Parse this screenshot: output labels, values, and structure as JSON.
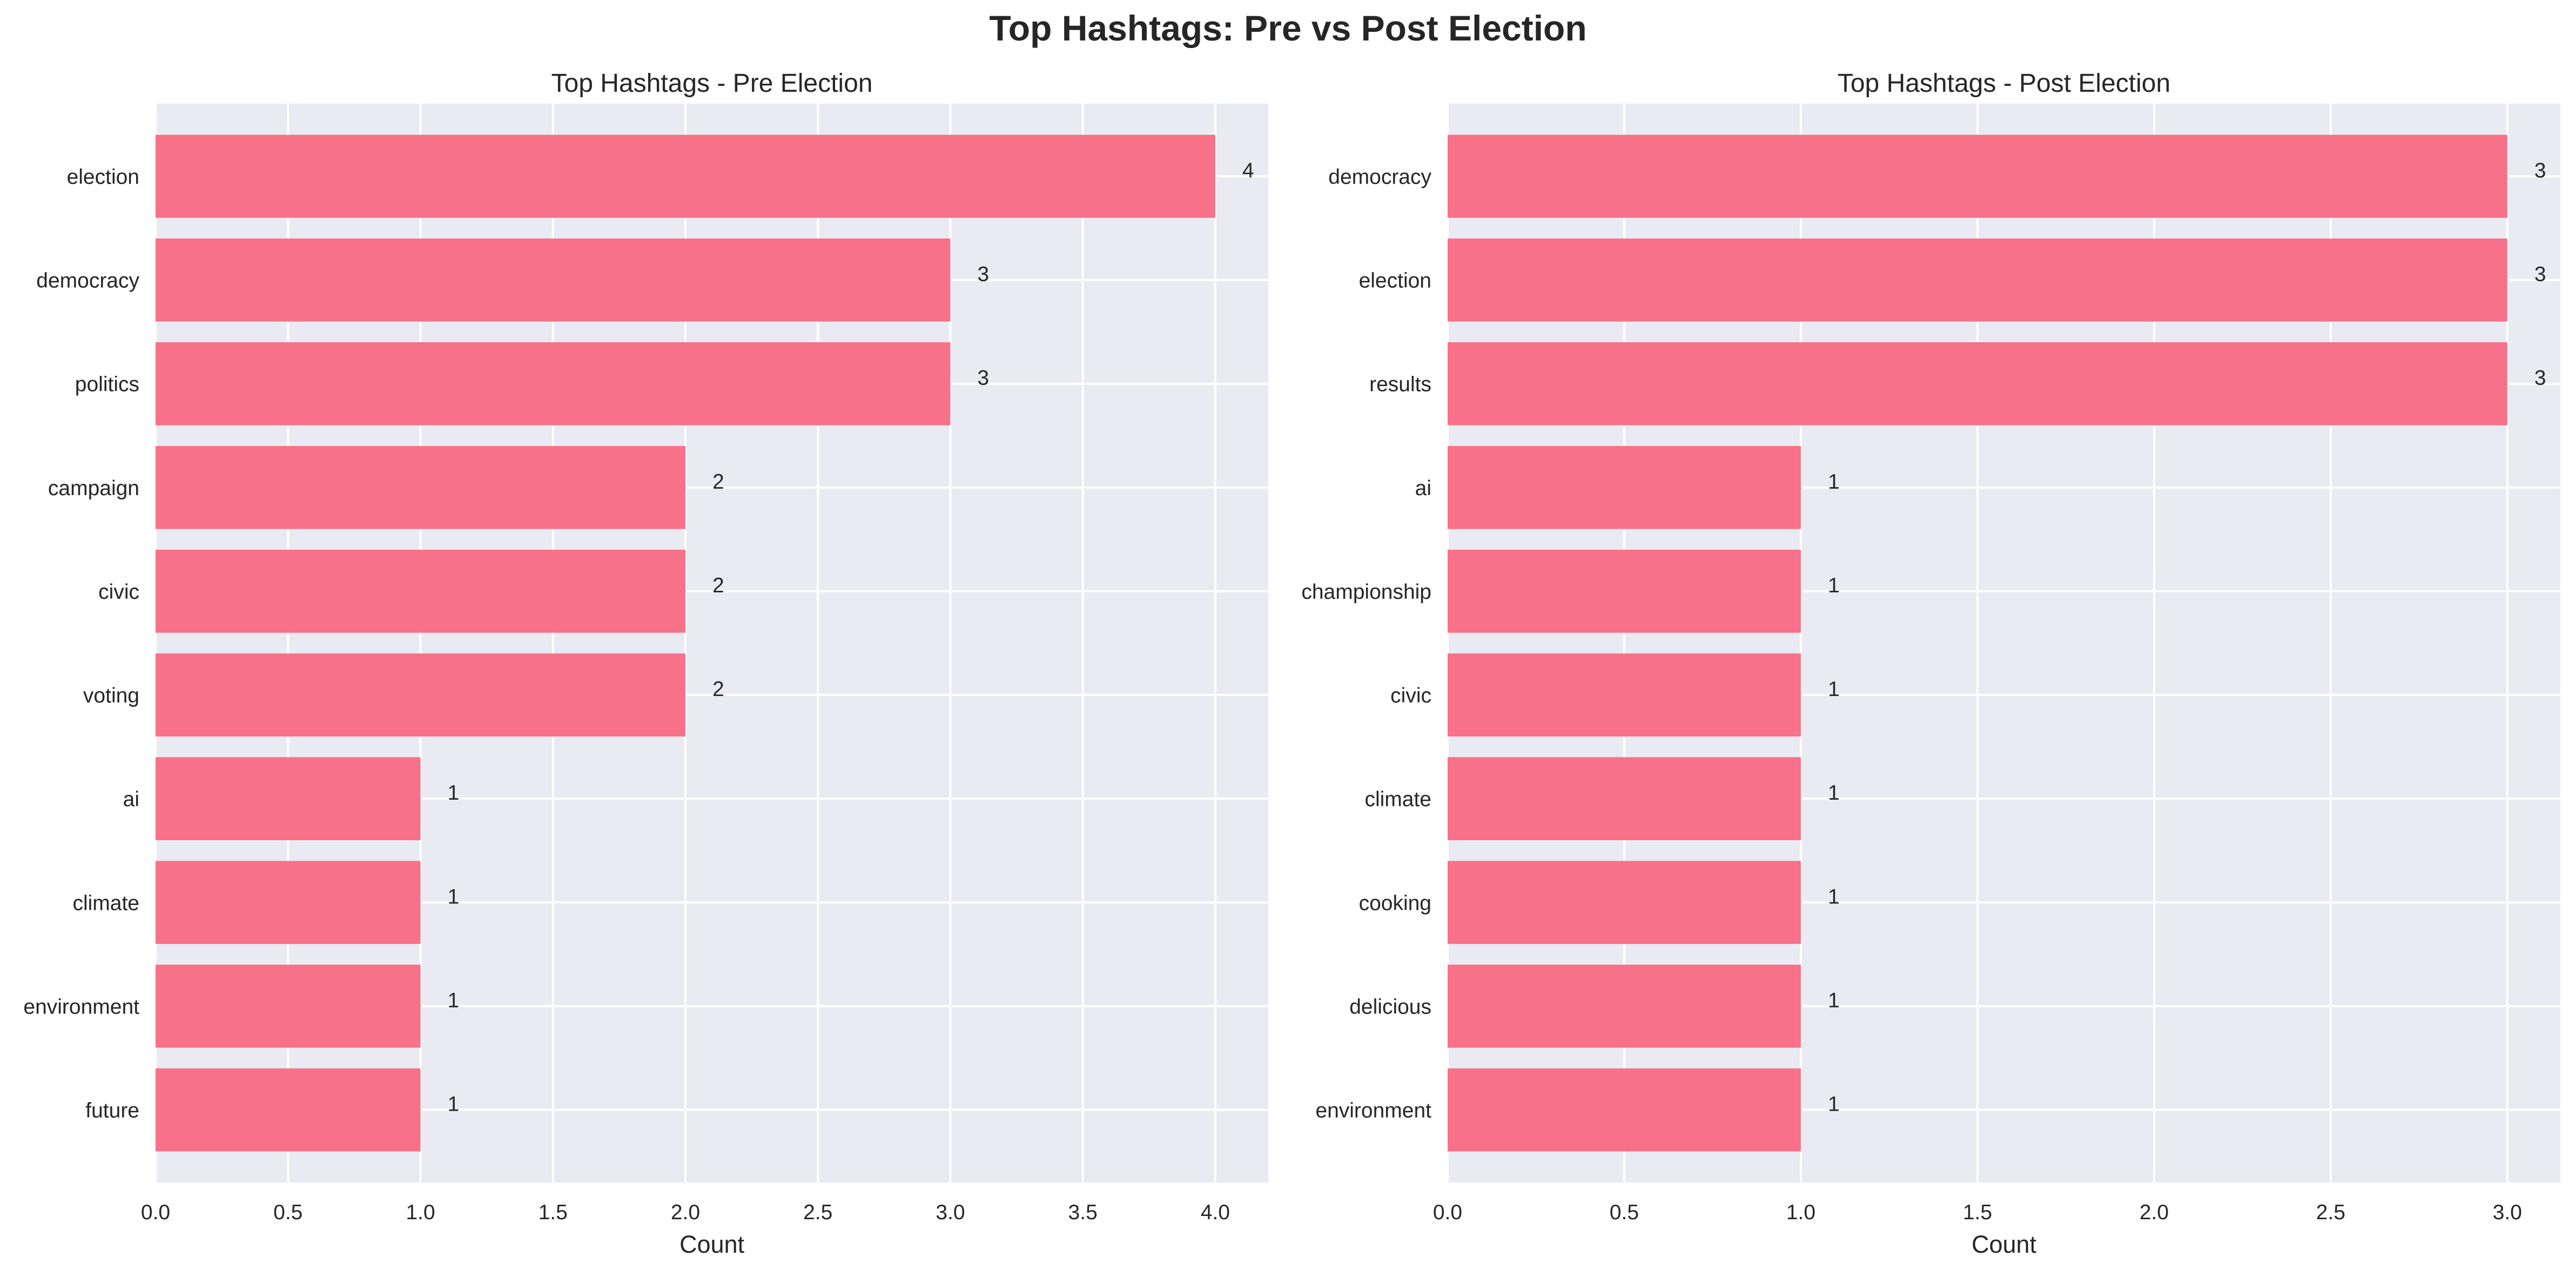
{
  "title": "Top Hashtags: Pre vs Post Election",
  "chart_data": [
    {
      "type": "bar",
      "orientation": "horizontal",
      "title": "Top Hashtags - Pre Election",
      "xlabel": "Count",
      "ylabel": "",
      "categories": [
        "election",
        "democracy",
        "politics",
        "campaign",
        "civic",
        "voting",
        "ai",
        "climate",
        "environment",
        "future"
      ],
      "values": [
        4,
        3,
        3,
        2,
        2,
        2,
        1,
        1,
        1,
        1
      ],
      "xlim": [
        0,
        4.2
      ],
      "xticks": [
        "0.0",
        "0.5",
        "1.0",
        "1.5",
        "2.0",
        "2.5",
        "3.0",
        "3.5",
        "4.0"
      ],
      "grid": true,
      "bar_color": "#f77189",
      "background": "#eaeaf2"
    },
    {
      "type": "bar",
      "orientation": "horizontal",
      "title": "Top Hashtags - Post Election",
      "xlabel": "Count",
      "ylabel": "",
      "categories": [
        "democracy",
        "election",
        "results",
        "ai",
        "championship",
        "civic",
        "climate",
        "cooking",
        "delicious",
        "environment"
      ],
      "values": [
        3,
        3,
        3,
        1,
        1,
        1,
        1,
        1,
        1,
        1
      ],
      "xlim": [
        0,
        3.15
      ],
      "xticks": [
        "0.0",
        "0.5",
        "1.0",
        "1.5",
        "2.0",
        "2.5",
        "3.0"
      ],
      "grid": true,
      "bar_color": "#f77189",
      "background": "#eaeaf2"
    }
  ]
}
